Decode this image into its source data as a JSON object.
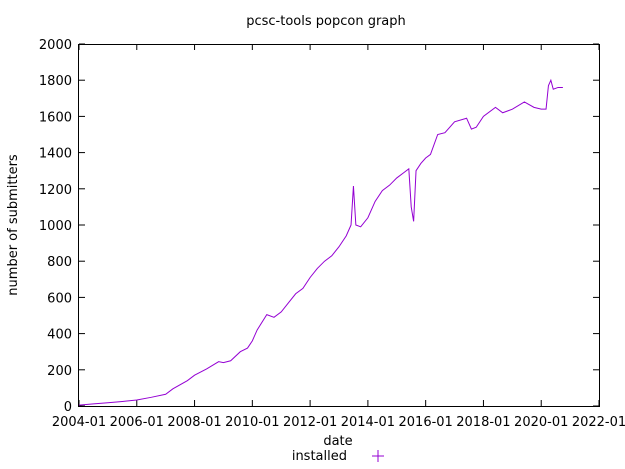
{
  "chart_data": {
    "type": "line",
    "title": "pcsc-tools popcon graph",
    "xlabel": "date",
    "ylabel": "number of submitters",
    "xlim": [
      "2004-01",
      "2022-01"
    ],
    "ylim": [
      0,
      2000
    ],
    "x_ticks": [
      "2004-01",
      "2006-01",
      "2008-01",
      "2010-01",
      "2012-01",
      "2014-01",
      "2016-01",
      "2018-01",
      "2020-01",
      "2022-01"
    ],
    "y_ticks": [
      0,
      200,
      400,
      600,
      800,
      1000,
      1200,
      1400,
      1600,
      1800,
      2000
    ],
    "grid": false,
    "legend_position": "bottom-center",
    "series": [
      {
        "name": "installed",
        "color": "#9400d3",
        "points": [
          [
            "2004-01",
            5
          ],
          [
            "2004-07",
            12
          ],
          [
            "2005-01",
            18
          ],
          [
            "2005-07",
            25
          ],
          [
            "2006-01",
            33
          ],
          [
            "2006-07",
            48
          ],
          [
            "2007-01",
            65
          ],
          [
            "2007-04",
            95
          ],
          [
            "2007-10",
            140
          ],
          [
            "2008-01",
            170
          ],
          [
            "2008-06",
            205
          ],
          [
            "2008-11",
            245
          ],
          [
            "2009-01",
            240
          ],
          [
            "2009-04",
            250
          ],
          [
            "2009-08",
            300
          ],
          [
            "2009-11",
            320
          ],
          [
            "2010-01",
            360
          ],
          [
            "2010-03",
            420
          ],
          [
            "2010-07",
            505
          ],
          [
            "2010-10",
            490
          ],
          [
            "2011-01",
            520
          ],
          [
            "2011-04",
            570
          ],
          [
            "2011-07",
            620
          ],
          [
            "2011-10",
            650
          ],
          [
            "2012-01",
            710
          ],
          [
            "2012-04",
            760
          ],
          [
            "2012-07",
            800
          ],
          [
            "2012-10",
            830
          ],
          [
            "2013-01",
            880
          ],
          [
            "2013-04",
            940
          ],
          [
            "2013-06",
            1000
          ],
          [
            "2013-07",
            1215
          ],
          [
            "2013-08",
            1000
          ],
          [
            "2013-10",
            990
          ],
          [
            "2014-01",
            1040
          ],
          [
            "2014-04",
            1130
          ],
          [
            "2014-07",
            1190
          ],
          [
            "2014-10",
            1220
          ],
          [
            "2015-01",
            1260
          ],
          [
            "2015-04",
            1290
          ],
          [
            "2015-06",
            1310
          ],
          [
            "2015-07",
            1100
          ],
          [
            "2015-08",
            1020
          ],
          [
            "2015-09",
            1300
          ],
          [
            "2015-11",
            1340
          ],
          [
            "2016-01",
            1370
          ],
          [
            "2016-03",
            1390
          ],
          [
            "2016-06",
            1500
          ],
          [
            "2016-09",
            1510
          ],
          [
            "2017-01",
            1570
          ],
          [
            "2017-06",
            1590
          ],
          [
            "2017-08",
            1530
          ],
          [
            "2017-10",
            1540
          ],
          [
            "2018-01",
            1600
          ],
          [
            "2018-06",
            1650
          ],
          [
            "2018-09",
            1620
          ],
          [
            "2019-01",
            1640
          ],
          [
            "2019-06",
            1680
          ],
          [
            "2019-10",
            1650
          ],
          [
            "2020-01",
            1640
          ],
          [
            "2020-03",
            1640
          ],
          [
            "2020-04",
            1770
          ],
          [
            "2020-05",
            1800
          ],
          [
            "2020-06",
            1750
          ],
          [
            "2020-08",
            1760
          ],
          [
            "2020-10",
            1760
          ]
        ]
      }
    ]
  }
}
